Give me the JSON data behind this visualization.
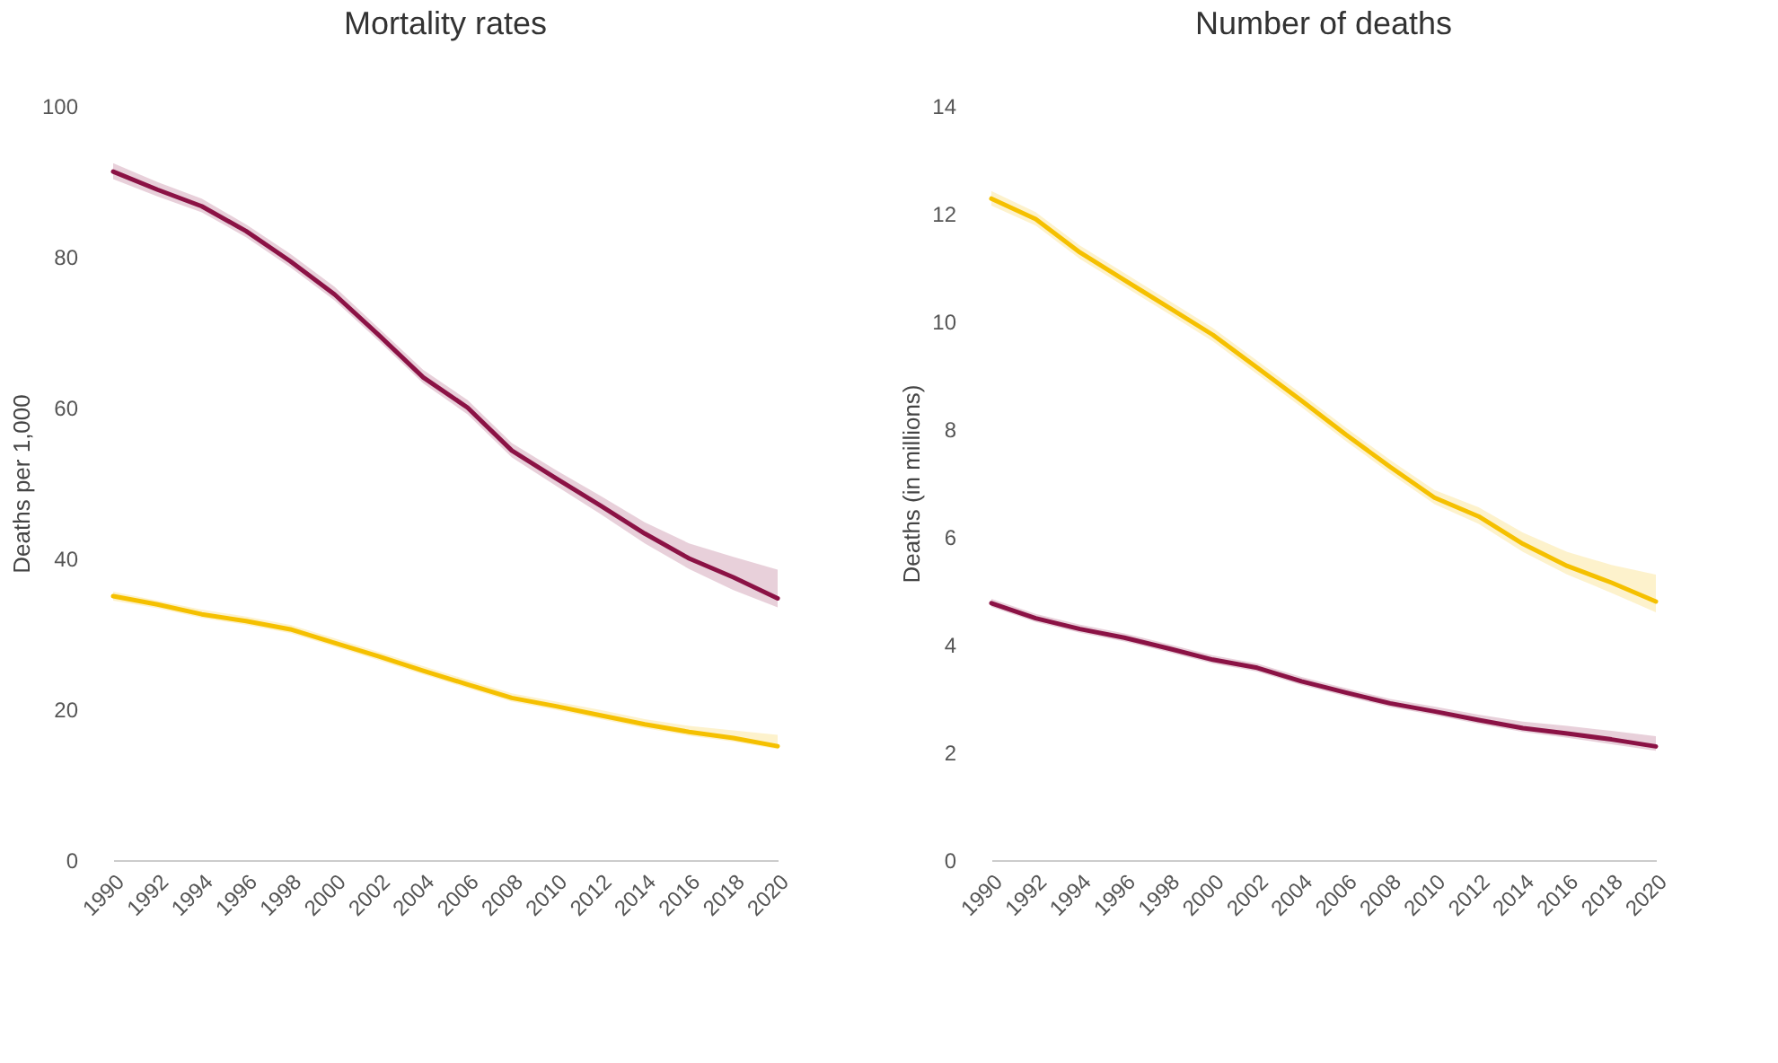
{
  "chart_data": [
    {
      "type": "line",
      "title": "Mortality rates",
      "ylabel": "Deaths per 1,000",
      "x": [
        1990,
        1992,
        1994,
        1996,
        1998,
        2000,
        2002,
        2004,
        2006,
        2008,
        2010,
        2012,
        2014,
        2016,
        2018,
        2020
      ],
      "xlim": [
        1990,
        2020
      ],
      "xticks": [
        1990,
        1992,
        1994,
        1996,
        1998,
        2000,
        2002,
        2004,
        2006,
        2008,
        2010,
        2012,
        2014,
        2016,
        2018,
        2020
      ],
      "ylim": [
        0,
        100
      ],
      "yticks": [
        0,
        20,
        40,
        60,
        80,
        100
      ],
      "grid": false,
      "legend": false,
      "series": [
        {
          "color": "#8b1245",
          "values": [
            91.3,
            88.9,
            86.7,
            83.4,
            79.4,
            75,
            69.6,
            64,
            60,
            54.3,
            50.6,
            47,
            43.3,
            40,
            37.5,
            34.7
          ],
          "lower": [
            90.3,
            88,
            85.9,
            82.6,
            78.6,
            74.2,
            68.8,
            63.2,
            59.1,
            53.4,
            49.6,
            45.9,
            42,
            38.6,
            35.8,
            33.5
          ],
          "upper": [
            92.4,
            89.9,
            87.7,
            84.3,
            80.4,
            76,
            70.5,
            65,
            61,
            55.3,
            51.7,
            48.3,
            44.8,
            42,
            40.2,
            38.5
          ]
        },
        {
          "color": "#f5c000",
          "values": [
            35,
            33.9,
            32.6,
            31.7,
            30.6,
            28.8,
            27,
            25.1,
            23.3,
            21.5,
            20.4,
            19.2,
            18,
            17,
            16.2,
            15.1
          ],
          "lower": [
            34.4,
            33.4,
            32.1,
            31.2,
            30.1,
            28.3,
            26.5,
            24.6,
            22.8,
            21,
            19.9,
            18.7,
            17.5,
            16.5,
            15.7,
            14.7
          ],
          "upper": [
            35.6,
            34.4,
            33.2,
            32.3,
            31.2,
            29.4,
            27.6,
            25.7,
            23.9,
            22.1,
            21,
            19.9,
            18.7,
            17.8,
            17.2,
            16.6
          ]
        }
      ]
    },
    {
      "type": "line",
      "title": "Number of deaths",
      "ylabel": "Deaths (in millions)",
      "x": [
        1990,
        1992,
        1994,
        1996,
        1998,
        2000,
        2002,
        2004,
        2006,
        2008,
        2010,
        2012,
        2014,
        2016,
        2018,
        2020
      ],
      "xlim": [
        1990,
        2020
      ],
      "xticks": [
        1990,
        1992,
        1994,
        1996,
        1998,
        2000,
        2002,
        2004,
        2006,
        2008,
        2010,
        2012,
        2014,
        2016,
        2018,
        2020
      ],
      "ylim": [
        0,
        14
      ],
      "yticks": [
        0,
        2,
        4,
        6,
        8,
        10,
        12,
        14
      ],
      "grid": false,
      "legend": false,
      "series": [
        {
          "color": "#f5c000",
          "values": [
            12.28,
            11.9,
            11.28,
            10.77,
            10.26,
            9.75,
            9.14,
            8.53,
            7.9,
            7.3,
            6.73,
            6.38,
            5.87,
            5.46,
            5.15,
            4.8
          ],
          "lower": [
            12.15,
            11.78,
            11.16,
            10.65,
            10.14,
            9.63,
            9.02,
            8.41,
            7.78,
            7.18,
            6.61,
            6.24,
            5.72,
            5.3,
            4.96,
            4.6
          ],
          "upper": [
            12.42,
            12.03,
            11.41,
            10.9,
            10.39,
            9.88,
            9.27,
            8.66,
            8.03,
            7.43,
            6.87,
            6.55,
            6.08,
            5.72,
            5.48,
            5.3
          ]
        },
        {
          "color": "#8b1245",
          "values": [
            4.77,
            4.49,
            4.29,
            4.13,
            3.93,
            3.72,
            3.57,
            3.32,
            3.11,
            2.91,
            2.76,
            2.6,
            2.45,
            2.35,
            2.24,
            2.11
          ],
          "lower": [
            4.7,
            4.42,
            4.22,
            4.06,
            3.86,
            3.65,
            3.5,
            3.25,
            3.04,
            2.84,
            2.69,
            2.53,
            2.38,
            2.27,
            2.15,
            2.03
          ],
          "upper": [
            4.85,
            4.57,
            4.37,
            4.21,
            4.01,
            3.8,
            3.65,
            3.4,
            3.19,
            2.99,
            2.85,
            2.7,
            2.57,
            2.49,
            2.4,
            2.3
          ]
        }
      ]
    }
  ]
}
